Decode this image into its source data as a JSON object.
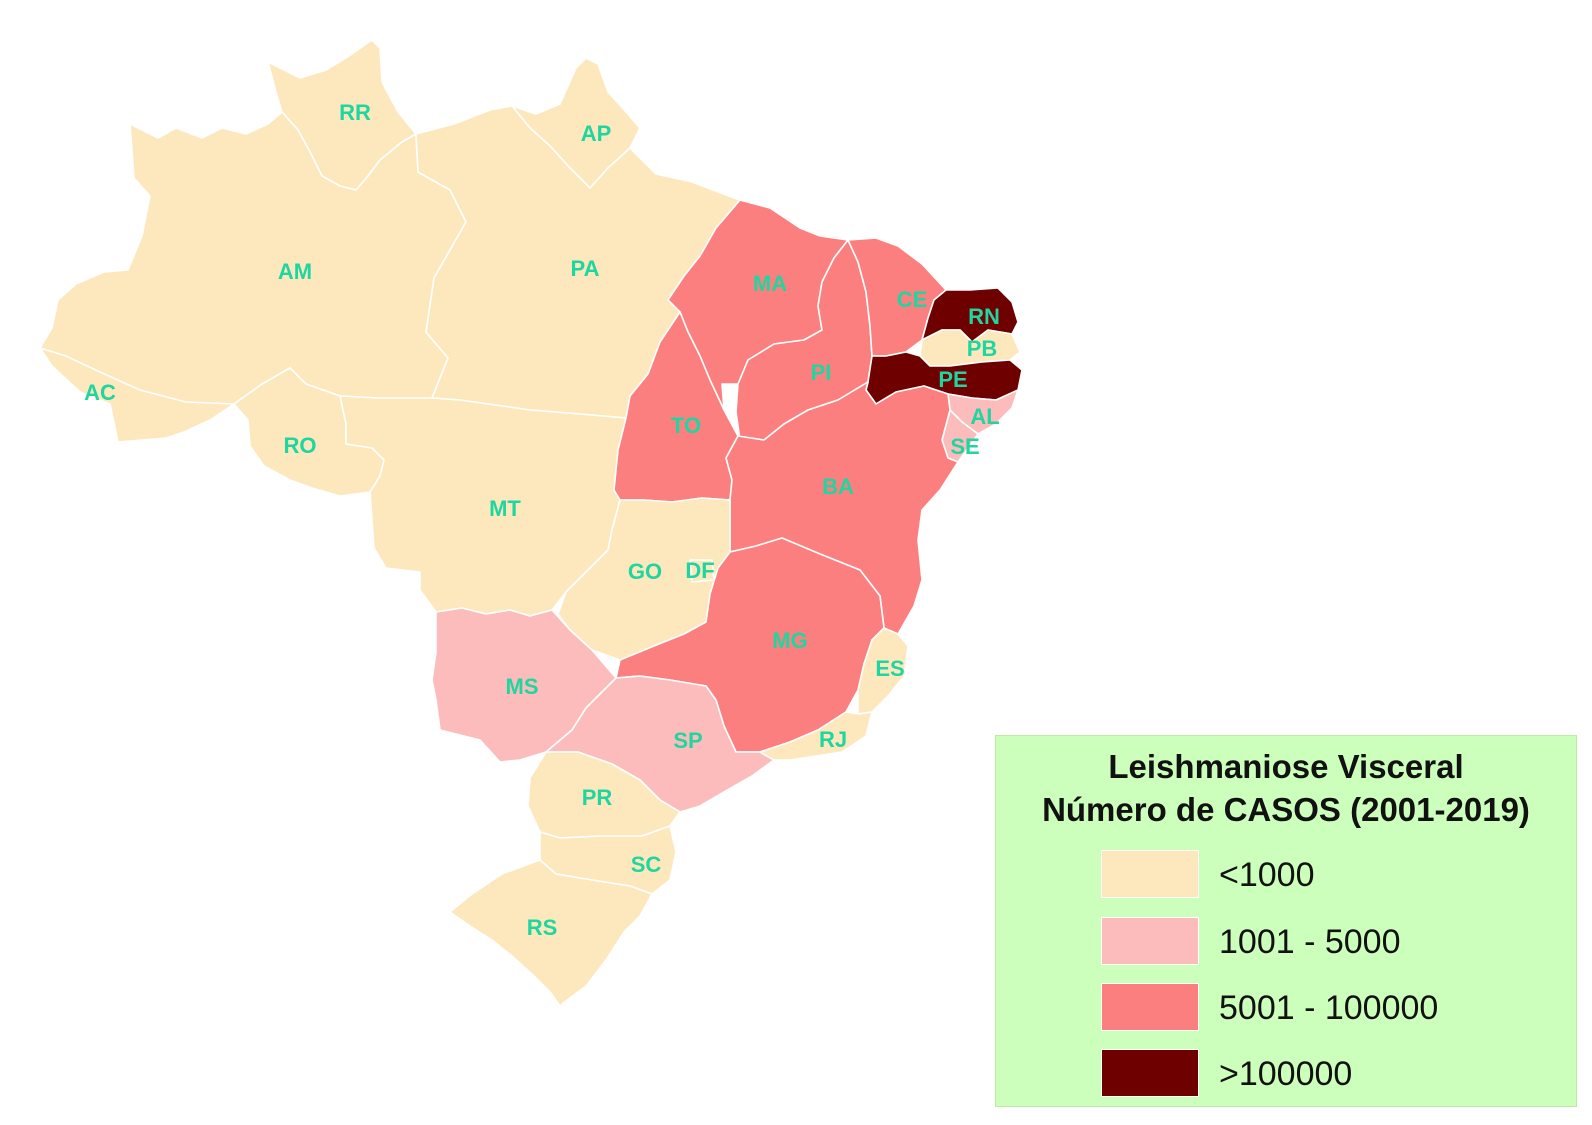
{
  "colors": {
    "low": "#fde8bd",
    "mid": "#fdbcbc",
    "high": "#fc7f7f",
    "top": "#6e0000",
    "label": "#1fd6a0",
    "legend_bg": "#ccffbb"
  },
  "states": [
    {
      "code": "RR",
      "class": "low"
    },
    {
      "code": "AP",
      "class": "low"
    },
    {
      "code": "AM",
      "class": "low"
    },
    {
      "code": "PA",
      "class": "low"
    },
    {
      "code": "AC",
      "class": "low"
    },
    {
      "code": "RO",
      "class": "low"
    },
    {
      "code": "MT",
      "class": "low"
    },
    {
      "code": "MA",
      "class": "high"
    },
    {
      "code": "PI",
      "class": "high"
    },
    {
      "code": "CE",
      "class": "high"
    },
    {
      "code": "RN",
      "class": "top"
    },
    {
      "code": "PB",
      "class": "low"
    },
    {
      "code": "PE",
      "class": "top"
    },
    {
      "code": "AL",
      "class": "mid"
    },
    {
      "code": "SE",
      "class": "mid"
    },
    {
      "code": "TO",
      "class": "high"
    },
    {
      "code": "BA",
      "class": "high"
    },
    {
      "code": "GO",
      "class": "low"
    },
    {
      "code": "DF",
      "class": "low"
    },
    {
      "code": "MG",
      "class": "high"
    },
    {
      "code": "ES",
      "class": "low"
    },
    {
      "code": "MS",
      "class": "mid"
    },
    {
      "code": "SP",
      "class": "mid"
    },
    {
      "code": "RJ",
      "class": "low"
    },
    {
      "code": "PR",
      "class": "low"
    },
    {
      "code": "SC",
      "class": "low"
    },
    {
      "code": "RS",
      "class": "low"
    }
  ],
  "legend": {
    "title_line1": "Leishmaniose Visceral",
    "title_line2": "Número de CASOS (2001-2019)",
    "items": [
      {
        "label": "<1000",
        "class": "low"
      },
      {
        "label": "1001 - 5000",
        "class": "mid"
      },
      {
        "label": "5001 - 100000",
        "class": "high"
      },
      {
        "label": ">100000",
        "class": "top"
      }
    ]
  }
}
